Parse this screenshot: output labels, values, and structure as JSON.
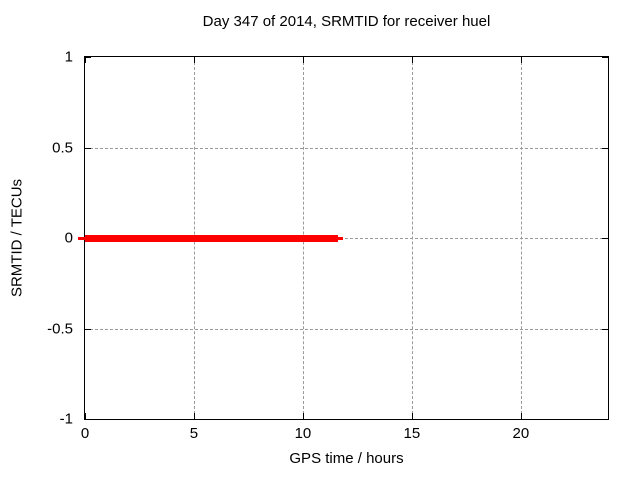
{
  "chart_data": {
    "type": "line",
    "title": "Day 347 of 2014, SRMTID for receiver huel",
    "xlabel": "GPS time / hours",
    "ylabel": "SRMTID / TECUs",
    "xlim": [
      0,
      24
    ],
    "ylim": [
      -1,
      1
    ],
    "xticks": [
      0,
      5,
      10,
      15,
      20
    ],
    "xtick_labels": [
      "0",
      "5",
      "10",
      "15",
      "20"
    ],
    "yticks": [
      1,
      0.5,
      0,
      -0.5,
      -1
    ],
    "ytick_labels": [
      "1",
      "0.5",
      "0",
      "-0.5",
      "-1"
    ],
    "grid": true,
    "grid_style": "dashed",
    "legend": "none",
    "series": [
      {
        "name": "SRMTID",
        "color": "#ff0000",
        "y": 0,
        "points": [
          [
            0,
            0
          ],
          [
            11.6,
            0
          ]
        ],
        "segments": [
          {
            "x_start": -0.3,
            "x_end": 0,
            "thickness_px": 3
          },
          {
            "x_start": 0,
            "x_end": 11.6,
            "thickness_px": 7
          },
          {
            "x_start": 11.6,
            "x_end": 11.85,
            "thickness_px": 3
          }
        ]
      }
    ],
    "colors": {
      "series": "#ff0000",
      "grid": "#9a9a9a",
      "axis": "#000000",
      "background": "#ffffff",
      "text": "#000000"
    }
  }
}
